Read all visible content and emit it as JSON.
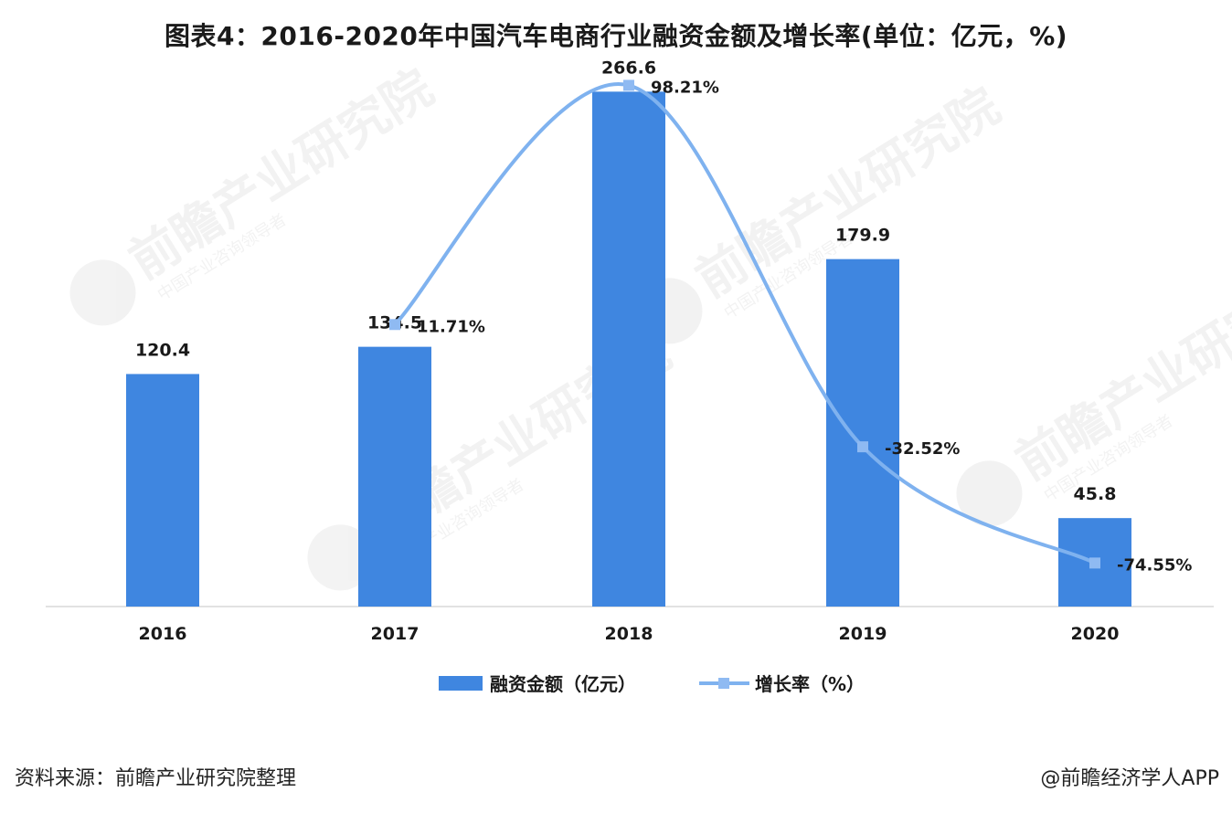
{
  "title": "图表4：2016-2020年中国汽车电商行业融资金额及增长率(单位：亿元，%)",
  "footer": {
    "source": "资料来源：前瞻产业研究院整理",
    "credit": "@前瞻经济学人APP"
  },
  "watermark": {
    "text": "前瞻产业研究院",
    "subtext": "中国产业咨询领导者"
  },
  "colors": {
    "bar": "#3f86e0",
    "line": "#7fb2ef",
    "marker": "#8fbaf2",
    "axis": "#d9d9d9"
  },
  "chart_data": {
    "type": "bar",
    "categories": [
      "2016",
      "2017",
      "2018",
      "2019",
      "2020"
    ],
    "series": [
      {
        "name": "融资金额（亿元）",
        "type": "bar",
        "axis": "left",
        "values": [
          120.4,
          134.5,
          266.6,
          179.9,
          45.8
        ],
        "labels": [
          "120.4",
          "134.5",
          "266.6",
          "179.9",
          "45.8"
        ]
      },
      {
        "name": "增长率（%）",
        "type": "line",
        "smooth": true,
        "axis": "right",
        "values": [
          null,
          11.71,
          98.21,
          -32.52,
          -74.55
        ],
        "labels": [
          "",
          "11.71%",
          "98.21%",
          "-32.52%",
          "-74.55%"
        ]
      }
    ],
    "ylim_left": [
      0,
      280
    ],
    "ylim_right": [
      -85,
      100
    ],
    "grid": false,
    "legend_position": "bottom"
  }
}
